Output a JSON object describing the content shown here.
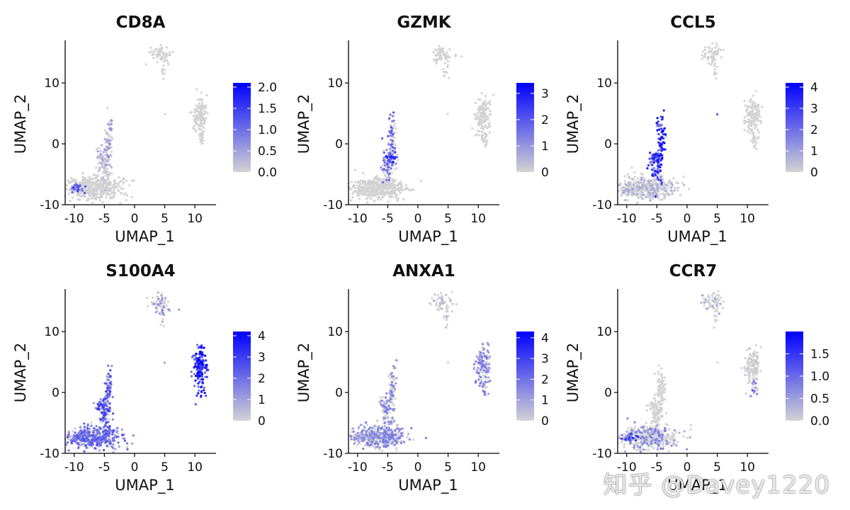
{
  "figure": {
    "watermark": "知乎 @Davey1220",
    "low_color": "#d3d3d3",
    "high_color": "#0000ff"
  },
  "chart_data": [
    {
      "type": "scatter",
      "title": "CD8A",
      "xlabel": "UMAP_1",
      "ylabel": "UMAP_2",
      "xlim": [
        -11.5,
        13.5
      ],
      "ylim": [
        -10,
        17
      ],
      "xticks": [
        -10,
        -5,
        0,
        5,
        10
      ],
      "yticks": [
        -10,
        0,
        10
      ],
      "colorbar": {
        "min": 0,
        "max": 2.1,
        "ticks": [
          0.0,
          0.5,
          1.0,
          1.5,
          2.0
        ],
        "tick_labels": [
          "0.0",
          "0.5",
          "1.0",
          "1.5",
          "2.0"
        ]
      },
      "clusters": [
        {
          "cx": -6.5,
          "cy": -7.3,
          "sx": 2.4,
          "sy": 0.9,
          "n": 420,
          "mean": 0.08,
          "frac": 0.1
        },
        {
          "cx": -9.5,
          "cy": -7.4,
          "sx": 0.6,
          "sy": 0.4,
          "n": 30,
          "mean": 1.1,
          "frac": 0.7
        },
        {
          "cx": -5.0,
          "cy": -3.5,
          "sx": 0.5,
          "sy": 1.6,
          "n": 70,
          "mean": 0.25,
          "frac": 0.3
        },
        {
          "cx": -4.3,
          "cy": 0.5,
          "sx": 0.35,
          "sy": 2.0,
          "n": 70,
          "mean": 0.5,
          "frac": 0.45
        },
        {
          "cx": -5.6,
          "cy": -2.3,
          "sx": 0.45,
          "sy": 0.6,
          "n": 25,
          "mean": 0.35,
          "frac": 0.35
        },
        {
          "cx": 4.2,
          "cy": 14.7,
          "sx": 0.9,
          "sy": 0.8,
          "n": 60,
          "mean": 0.05,
          "frac": 0.05
        },
        {
          "cx": 4.7,
          "cy": 12.0,
          "sx": 0.2,
          "sy": 1.0,
          "n": 10,
          "mean": 0.0,
          "frac": 0.0
        },
        {
          "cx": 10.8,
          "cy": 4.5,
          "sx": 0.6,
          "sy": 1.6,
          "n": 130,
          "mean": 0.05,
          "frac": 0.05
        },
        {
          "cx": 11.1,
          "cy": 0.8,
          "sx": 0.3,
          "sy": 0.9,
          "n": 20,
          "mean": 0.0,
          "frac": 0.0
        },
        {
          "cx": 5.0,
          "cy": 4.9,
          "sx": 0.03,
          "sy": 0.03,
          "n": 1,
          "mean": 0.0,
          "frac": 0.0
        }
      ]
    },
    {
      "type": "scatter",
      "title": "GZMK",
      "xlabel": "UMAP_1",
      "ylabel": "UMAP_2",
      "xlim": [
        -11.5,
        13.5
      ],
      "ylim": [
        -10,
        17
      ],
      "xticks": [
        -10,
        -5,
        0,
        5,
        10
      ],
      "yticks": [
        -10,
        0,
        10
      ],
      "colorbar": {
        "min": 0,
        "max": 3.4,
        "ticks": [
          0,
          1,
          2,
          3
        ],
        "tick_labels": [
          "0",
          "1",
          "2",
          "3"
        ]
      },
      "clusters": [
        {
          "cx": -6.5,
          "cy": -7.3,
          "sx": 2.4,
          "sy": 0.9,
          "n": 420,
          "mean": 0.05,
          "frac": 0.06
        },
        {
          "cx": -9.5,
          "cy": -7.4,
          "sx": 0.6,
          "sy": 0.4,
          "n": 30,
          "mean": 0.05,
          "frac": 0.05
        },
        {
          "cx": -5.0,
          "cy": -3.5,
          "sx": 0.5,
          "sy": 1.6,
          "n": 70,
          "mean": 1.4,
          "frac": 0.55
        },
        {
          "cx": -4.3,
          "cy": 0.5,
          "sx": 0.35,
          "sy": 2.0,
          "n": 70,
          "mean": 1.6,
          "frac": 0.5
        },
        {
          "cx": -4.6,
          "cy": -2.4,
          "sx": 0.5,
          "sy": 0.5,
          "n": 35,
          "mean": 2.2,
          "frac": 0.85
        },
        {
          "cx": 4.2,
          "cy": 14.7,
          "sx": 0.9,
          "sy": 0.8,
          "n": 60,
          "mean": 0.0,
          "frac": 0.0
        },
        {
          "cx": 4.7,
          "cy": 12.0,
          "sx": 0.2,
          "sy": 1.0,
          "n": 10,
          "mean": 0.0,
          "frac": 0.0
        },
        {
          "cx": 10.8,
          "cy": 4.5,
          "sx": 0.6,
          "sy": 1.6,
          "n": 130,
          "mean": 0.0,
          "frac": 0.0
        },
        {
          "cx": 11.1,
          "cy": 0.8,
          "sx": 0.3,
          "sy": 0.9,
          "n": 20,
          "mean": 0.2,
          "frac": 0.1
        },
        {
          "cx": 5.0,
          "cy": 4.9,
          "sx": 0.03,
          "sy": 0.03,
          "n": 1,
          "mean": 0.0,
          "frac": 0.0
        }
      ]
    },
    {
      "type": "scatter",
      "title": "CCL5",
      "xlabel": "UMAP_1",
      "ylabel": "UMAP_2",
      "xlim": [
        -11.5,
        13.5
      ],
      "ylim": [
        -10,
        17
      ],
      "xticks": [
        -10,
        -5,
        0,
        5,
        10
      ],
      "yticks": [
        -10,
        0,
        10
      ],
      "colorbar": {
        "min": 0,
        "max": 4.2,
        "ticks": [
          0,
          1,
          2,
          3,
          4
        ],
        "tick_labels": [
          "0",
          "1",
          "2",
          "3",
          "4"
        ]
      },
      "clusters": [
        {
          "cx": -6.5,
          "cy": -7.3,
          "sx": 2.4,
          "sy": 0.9,
          "n": 420,
          "mean": 0.6,
          "frac": 0.25
        },
        {
          "cx": -9.5,
          "cy": -7.4,
          "sx": 0.6,
          "sy": 0.4,
          "n": 30,
          "mean": 0.8,
          "frac": 0.3
        },
        {
          "cx": -5.0,
          "cy": -3.5,
          "sx": 0.5,
          "sy": 1.6,
          "n": 70,
          "mean": 2.8,
          "frac": 0.9
        },
        {
          "cx": -4.3,
          "cy": 0.5,
          "sx": 0.35,
          "sy": 2.0,
          "n": 70,
          "mean": 3.2,
          "frac": 0.9
        },
        {
          "cx": -5.6,
          "cy": -2.3,
          "sx": 0.45,
          "sy": 0.6,
          "n": 25,
          "mean": 2.6,
          "frac": 0.85
        },
        {
          "cx": 4.2,
          "cy": 14.7,
          "sx": 0.9,
          "sy": 0.8,
          "n": 60,
          "mean": 0.0,
          "frac": 0.0
        },
        {
          "cx": 4.7,
          "cy": 12.0,
          "sx": 0.2,
          "sy": 1.0,
          "n": 10,
          "mean": 0.0,
          "frac": 0.0
        },
        {
          "cx": 10.8,
          "cy": 4.5,
          "sx": 0.6,
          "sy": 1.6,
          "n": 130,
          "mean": 0.05,
          "frac": 0.03
        },
        {
          "cx": 11.1,
          "cy": 0.8,
          "sx": 0.3,
          "sy": 0.9,
          "n": 20,
          "mean": 0.1,
          "frac": 0.05
        },
        {
          "cx": 5.0,
          "cy": 4.9,
          "sx": 0.03,
          "sy": 0.03,
          "n": 1,
          "mean": 3.5,
          "frac": 1.0
        }
      ]
    },
    {
      "type": "scatter",
      "title": "S100A4",
      "xlabel": "UMAP_1",
      "ylabel": "UMAP_2",
      "xlim": [
        -11.5,
        13.5
      ],
      "ylim": [
        -10,
        17
      ],
      "xticks": [
        -10,
        -5,
        0,
        5,
        10
      ],
      "yticks": [
        -10,
        0,
        10
      ],
      "colorbar": {
        "min": 0,
        "max": 4.2,
        "ticks": [
          0,
          1,
          2,
          3,
          4
        ],
        "tick_labels": [
          "0",
          "1",
          "2",
          "3",
          "4"
        ]
      },
      "clusters": [
        {
          "cx": -6.5,
          "cy": -7.3,
          "sx": 2.4,
          "sy": 0.9,
          "n": 420,
          "mean": 1.8,
          "frac": 0.75
        },
        {
          "cx": -9.5,
          "cy": -7.4,
          "sx": 0.6,
          "sy": 0.4,
          "n": 30,
          "mean": 1.2,
          "frac": 0.6
        },
        {
          "cx": -5.0,
          "cy": -3.5,
          "sx": 0.5,
          "sy": 1.6,
          "n": 70,
          "mean": 2.2,
          "frac": 0.85
        },
        {
          "cx": -4.3,
          "cy": 0.5,
          "sx": 0.35,
          "sy": 2.0,
          "n": 70,
          "mean": 2.0,
          "frac": 0.8
        },
        {
          "cx": -5.6,
          "cy": -2.3,
          "sx": 0.45,
          "sy": 0.6,
          "n": 25,
          "mean": 2.0,
          "frac": 0.8
        },
        {
          "cx": 4.2,
          "cy": 14.7,
          "sx": 0.9,
          "sy": 0.8,
          "n": 60,
          "mean": 1.0,
          "frac": 0.45
        },
        {
          "cx": 4.7,
          "cy": 12.0,
          "sx": 0.2,
          "sy": 1.0,
          "n": 10,
          "mean": 1.2,
          "frac": 0.6
        },
        {
          "cx": 10.8,
          "cy": 4.5,
          "sx": 0.6,
          "sy": 1.6,
          "n": 130,
          "mean": 3.3,
          "frac": 1.0
        },
        {
          "cx": 11.1,
          "cy": 0.8,
          "sx": 0.3,
          "sy": 0.9,
          "n": 20,
          "mean": 3.1,
          "frac": 1.0
        },
        {
          "cx": 5.0,
          "cy": 4.9,
          "sx": 0.03,
          "sy": 0.03,
          "n": 1,
          "mean": 1.5,
          "frac": 1.0
        }
      ]
    },
    {
      "type": "scatter",
      "title": "ANXA1",
      "xlabel": "UMAP_1",
      "ylabel": "UMAP_2",
      "xlim": [
        -11.5,
        13.5
      ],
      "ylim": [
        -10,
        17
      ],
      "xticks": [
        -10,
        -5,
        0,
        5,
        10
      ],
      "yticks": [
        -10,
        0,
        10
      ],
      "colorbar": {
        "min": 0,
        "max": 4.3,
        "ticks": [
          0,
          1,
          2,
          3,
          4
        ],
        "tick_labels": [
          "0",
          "1",
          "2",
          "3",
          "4"
        ]
      },
      "clusters": [
        {
          "cx": -6.5,
          "cy": -7.3,
          "sx": 2.4,
          "sy": 0.9,
          "n": 420,
          "mean": 1.3,
          "frac": 0.55
        },
        {
          "cx": -9.5,
          "cy": -7.4,
          "sx": 0.6,
          "sy": 0.4,
          "n": 30,
          "mean": 1.0,
          "frac": 0.5
        },
        {
          "cx": -5.0,
          "cy": -3.5,
          "sx": 0.5,
          "sy": 1.6,
          "n": 70,
          "mean": 1.3,
          "frac": 0.55
        },
        {
          "cx": -4.3,
          "cy": 0.5,
          "sx": 0.35,
          "sy": 2.0,
          "n": 70,
          "mean": 1.2,
          "frac": 0.5
        },
        {
          "cx": -5.6,
          "cy": -2.3,
          "sx": 0.45,
          "sy": 0.6,
          "n": 25,
          "mean": 1.2,
          "frac": 0.5
        },
        {
          "cx": 4.2,
          "cy": 14.7,
          "sx": 0.9,
          "sy": 0.8,
          "n": 60,
          "mean": 0.6,
          "frac": 0.3
        },
        {
          "cx": 4.7,
          "cy": 12.0,
          "sx": 0.2,
          "sy": 1.0,
          "n": 10,
          "mean": 0.6,
          "frac": 0.3
        },
        {
          "cx": 10.8,
          "cy": 4.5,
          "sx": 0.6,
          "sy": 1.6,
          "n": 130,
          "mean": 1.4,
          "frac": 0.6
        },
        {
          "cx": 11.1,
          "cy": 0.8,
          "sx": 0.3,
          "sy": 0.9,
          "n": 20,
          "mean": 1.5,
          "frac": 0.65
        },
        {
          "cx": 5.0,
          "cy": 4.9,
          "sx": 0.03,
          "sy": 0.03,
          "n": 1,
          "mean": 0.0,
          "frac": 0.0
        }
      ]
    },
    {
      "type": "scatter",
      "title": "CCR7",
      "xlabel": "UMAP_1",
      "ylabel": "UMAP_2",
      "xlim": [
        -11.5,
        13.5
      ],
      "ylim": [
        -10,
        17
      ],
      "xticks": [
        -10,
        -5,
        0,
        5,
        10
      ],
      "yticks": [
        -10,
        0,
        10
      ],
      "colorbar": {
        "min": 0,
        "max": 2.0,
        "ticks": [
          0.0,
          0.5,
          1.0,
          1.5
        ],
        "tick_labels": [
          "0.0",
          "0.5",
          "1.0",
          "1.5"
        ]
      },
      "clusters": [
        {
          "cx": -6.5,
          "cy": -7.3,
          "sx": 2.4,
          "sy": 0.9,
          "n": 420,
          "mean": 0.6,
          "frac": 0.35
        },
        {
          "cx": -9.5,
          "cy": -7.4,
          "sx": 0.6,
          "sy": 0.4,
          "n": 30,
          "mean": 1.2,
          "frac": 0.7
        },
        {
          "cx": -5.0,
          "cy": -3.5,
          "sx": 0.5,
          "sy": 1.6,
          "n": 70,
          "mean": 0.05,
          "frac": 0.05
        },
        {
          "cx": -4.3,
          "cy": 0.5,
          "sx": 0.35,
          "sy": 2.0,
          "n": 70,
          "mean": 0.02,
          "frac": 0.02
        },
        {
          "cx": -5.6,
          "cy": -2.3,
          "sx": 0.45,
          "sy": 0.6,
          "n": 25,
          "mean": 0.05,
          "frac": 0.05
        },
        {
          "cx": 4.2,
          "cy": 14.7,
          "sx": 0.9,
          "sy": 0.8,
          "n": 60,
          "mean": 0.4,
          "frac": 0.2
        },
        {
          "cx": 4.7,
          "cy": 12.0,
          "sx": 0.2,
          "sy": 1.0,
          "n": 10,
          "mean": 0.0,
          "frac": 0.0
        },
        {
          "cx": 10.8,
          "cy": 4.5,
          "sx": 0.6,
          "sy": 1.6,
          "n": 130,
          "mean": 0.15,
          "frac": 0.1
        },
        {
          "cx": 11.1,
          "cy": 0.8,
          "sx": 0.3,
          "sy": 0.9,
          "n": 20,
          "mean": 0.9,
          "frac": 0.6
        },
        {
          "cx": 5.0,
          "cy": 4.9,
          "sx": 0.03,
          "sy": 0.03,
          "n": 1,
          "mean": 0.0,
          "frac": 0.0
        }
      ]
    }
  ]
}
